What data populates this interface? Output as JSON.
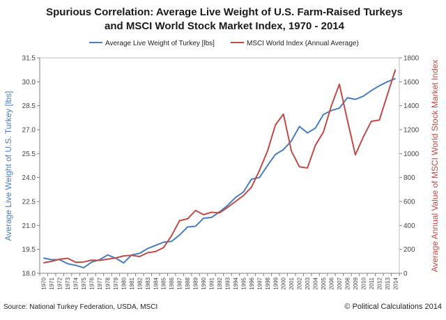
{
  "chart_data": {
    "type": "line",
    "title_line1": "Spurious Correlation: Average Live Weight of U.S. Farm-Raised Turkeys",
    "title_line2": "and MSCI World Stock Market Index, 1970 - 2014",
    "ylabel_left": "Average Live Weight of U.S. Turkey [lbs]",
    "ylabel_right": "Average Annual Value of MSCI World Stock Market Index",
    "source": "Source: National Turkey Federation,  USDA, MSCI",
    "copyright": "© Political Calculations 2014",
    "x": [
      1970,
      1971,
      1972,
      1973,
      1974,
      1975,
      1976,
      1977,
      1978,
      1979,
      1980,
      1981,
      1982,
      1983,
      1984,
      1985,
      1986,
      1987,
      1988,
      1989,
      1990,
      1991,
      1992,
      1993,
      1994,
      1995,
      1996,
      1997,
      1998,
      1999,
      2000,
      2001,
      2002,
      2003,
      2004,
      2005,
      2006,
      2007,
      2008,
      2009,
      2010,
      2011,
      2012,
      2013,
      2014
    ],
    "y_left_ticks": [
      "18.0",
      "19.5",
      "21.0",
      "22.5",
      "24.0",
      "25.5",
      "27.0",
      "28.5",
      "30.0",
      "31.5"
    ],
    "y_right_ticks": [
      "0",
      "200",
      "400",
      "600",
      "800",
      "1000",
      "1200",
      "1400",
      "1600",
      "1800"
    ],
    "y_left_range": [
      18,
      31.5
    ],
    "y_right_range": [
      0,
      1800
    ],
    "grid": false,
    "legend_position": "top",
    "series": [
      {
        "name": "Average Live Weight of Turkey [lbs]",
        "axis": "left",
        "color": "#4a7ebb",
        "values": [
          18.95,
          18.85,
          18.85,
          18.6,
          18.5,
          18.35,
          18.7,
          18.85,
          19.15,
          18.95,
          18.65,
          19.15,
          19.25,
          19.55,
          19.75,
          19.95,
          20.0,
          20.4,
          20.9,
          20.95,
          21.45,
          21.5,
          21.85,
          22.25,
          22.75,
          23.1,
          23.9,
          24.0,
          24.75,
          25.45,
          25.75,
          26.3,
          27.2,
          26.8,
          27.1,
          27.95,
          28.2,
          28.35,
          29.0,
          28.9,
          29.1,
          29.45,
          29.75,
          30.0,
          30.2
        ]
      },
      {
        "name": "MSCI World Index (Annual Average)",
        "axis": "right",
        "color": "#be4b48",
        "values": [
          88,
          100,
          118,
          125,
          92,
          95,
          110,
          108,
          118,
          128,
          145,
          150,
          140,
          172,
          182,
          215,
          315,
          440,
          455,
          525,
          490,
          510,
          505,
          550,
          600,
          650,
          720,
          860,
          1020,
          1240,
          1330,
          1020,
          890,
          880,
          1070,
          1180,
          1400,
          1580,
          1280,
          990,
          1140,
          1270,
          1280,
          1490,
          1700
        ]
      }
    ]
  }
}
